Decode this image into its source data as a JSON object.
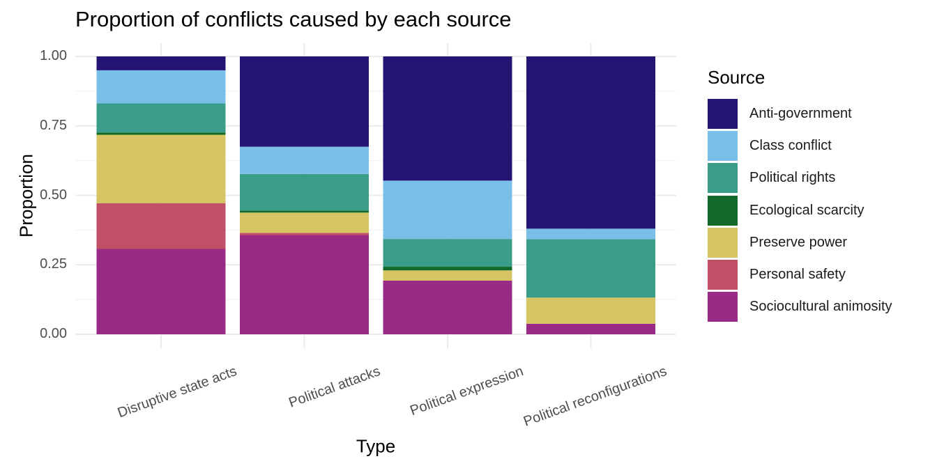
{
  "chart_data": {
    "type": "bar",
    "stacked": true,
    "title": "Proportion of conflicts caused by each source",
    "xlabel": "Type",
    "ylabel": "Proportion",
    "ylim": [
      0,
      1
    ],
    "y_ticks": [
      "0.00",
      "0.25",
      "0.50",
      "0.75",
      "1.00"
    ],
    "categories": [
      "Disruptive state acts",
      "Political attacks",
      "Political expression",
      "Political reconfigurations"
    ],
    "legend_title": "Source",
    "legend_position": "right",
    "series": [
      {
        "name": "Sociocultural animosity",
        "color": "#992a86",
        "values": [
          0.307,
          0.357,
          0.193,
          0.038
        ]
      },
      {
        "name": "Personal safety",
        "color": "#c05065",
        "values": [
          0.165,
          0.008,
          0.0,
          0.0
        ]
      },
      {
        "name": "Preserve power",
        "color": "#d7c464",
        "values": [
          0.246,
          0.073,
          0.037,
          0.094
        ]
      },
      {
        "name": "Ecological scarcity",
        "color": "#126a2a",
        "values": [
          0.008,
          0.007,
          0.013,
          0.0
        ]
      },
      {
        "name": "Political rights",
        "color": "#3a9d89",
        "values": [
          0.105,
          0.132,
          0.1,
          0.21
        ]
      },
      {
        "name": "Class conflict",
        "color": "#7abfe8",
        "values": [
          0.119,
          0.098,
          0.21,
          0.038
        ]
      },
      {
        "name": "Anti-government",
        "color": "#261474",
        "values": [
          0.05,
          0.325,
          0.447,
          0.62
        ]
      }
    ],
    "legend_order": [
      "Anti-government",
      "Class conflict",
      "Political rights",
      "Ecological scarcity",
      "Preserve power",
      "Personal safety",
      "Sociocultural animosity"
    ]
  }
}
